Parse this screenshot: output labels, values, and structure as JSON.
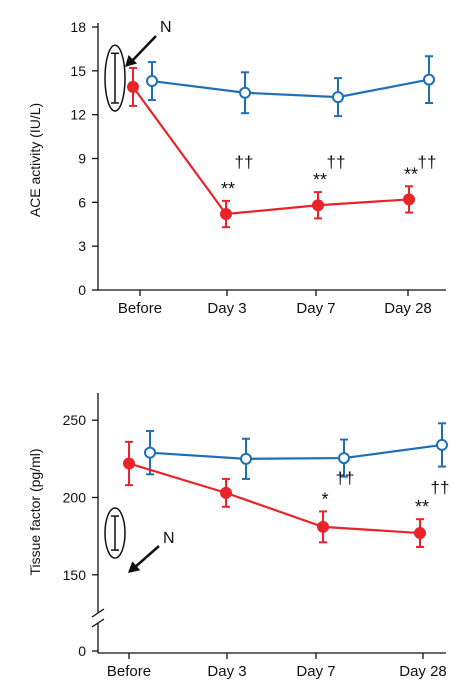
{
  "chart_data": [
    {
      "type": "line",
      "ylabel": "ACE activity (IU/L)",
      "categories": [
        "Before",
        "Day 3",
        "Day 7",
        "Day 28"
      ],
      "yticks": [
        "0",
        "3",
        "6",
        "9",
        "12",
        "15",
        "18"
      ],
      "ylim": [
        0,
        18
      ],
      "axis_break": false,
      "grid": false,
      "series": [
        {
          "key": "blue",
          "color": "#1f6fb4",
          "marker": "open-circle",
          "values": [
            14.3,
            13.5,
            13.2,
            14.4
          ],
          "err": [
            1.3,
            1.4,
            1.3,
            1.6
          ]
        },
        {
          "key": "red",
          "color": "#e8242a",
          "marker": "filled-circle",
          "values": [
            13.9,
            5.2,
            5.8,
            6.2
          ],
          "err": [
            1.3,
            0.9,
            0.9,
            0.9
          ]
        }
      ],
      "significance": [
        {
          "index": 1,
          "star": "**",
          "dagger": "††"
        },
        {
          "index": 2,
          "star": "**",
          "dagger": "††"
        },
        {
          "index": 3,
          "star": "**",
          "dagger": "††"
        }
      ],
      "normal_range_label": "N",
      "normal_range": [
        12.8,
        16.2
      ]
    },
    {
      "type": "line",
      "ylabel": "Tissue factor (pg/ml)",
      "categories": [
        "Before",
        "Day 3",
        "Day 7",
        "Day 28"
      ],
      "yticks": [
        "0",
        "150",
        "200",
        "250"
      ],
      "ylim": [
        135,
        265
      ],
      "axis_break": true,
      "grid": false,
      "series": [
        {
          "key": "blue",
          "color": "#1f6fb4",
          "marker": "open-circle",
          "values": [
            229,
            225,
            225.5,
            234
          ],
          "err": [
            14,
            13,
            12,
            14
          ]
        },
        {
          "key": "red",
          "color": "#e8242a",
          "marker": "filled-circle",
          "values": [
            222,
            203,
            181,
            177
          ],
          "err": [
            14,
            9,
            10,
            9
          ]
        }
      ],
      "significance": [
        {
          "index": 2,
          "star": "*",
          "dagger": "††"
        },
        {
          "index": 3,
          "star": "**",
          "dagger": "††"
        }
      ],
      "normal_range_label": "N",
      "normal_range": [
        166,
        188
      ]
    }
  ]
}
